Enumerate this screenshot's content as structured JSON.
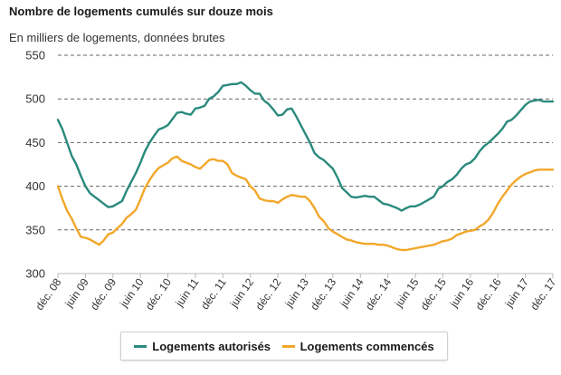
{
  "title": "Nombre de logements cumulés sur douze mois",
  "subtitle": "En milliers de logements, données brutes",
  "colors": {
    "autorises": "#2a8a7c",
    "commences": "#f2a72a",
    "grid": "#666666",
    "axis": "#bbbbbb"
  },
  "legend": {
    "autorises": "Logements autorisés",
    "commences": "Logements commencés"
  },
  "chart_data": {
    "type": "line",
    "title": "Nombre de logements cumulés sur douze mois",
    "subtitle": "En milliers de logements, données brutes",
    "ylim": [
      300,
      550
    ],
    "yticks": [
      300,
      350,
      400,
      450,
      500,
      550
    ],
    "xlim": [
      0,
      108
    ],
    "xtick_positions": [
      0,
      6,
      12,
      18,
      24,
      30,
      36,
      42,
      48,
      54,
      60,
      66,
      72,
      78,
      84,
      90,
      96,
      102,
      108
    ],
    "xtick_labels": [
      "déc. 08",
      "juin 09",
      "déc. 09",
      "juin 10",
      "déc. 10",
      "juin 11",
      "déc. 11",
      "juin 12",
      "déc. 12",
      "juin 13",
      "déc. 13",
      "juin 14",
      "déc. 14",
      "juin 15",
      "déc. 15",
      "juin 16",
      "déc. 16",
      "juin 17",
      "déc. 17"
    ],
    "grid": true,
    "legend_position": "bottom",
    "series": [
      {
        "name": "Logements autorisés",
        "color": "#2a8a7c",
        "values": [
          476,
          465,
          450,
          435,
          425,
          412,
          400,
          392,
          388,
          384,
          380,
          376,
          377,
          380,
          383,
          395,
          405,
          415,
          427,
          440,
          450,
          458,
          465,
          467,
          470,
          477,
          484,
          485,
          483,
          482,
          489,
          490,
          492,
          500,
          503,
          508,
          515,
          516,
          517,
          517,
          519,
          515,
          510,
          506,
          506,
          498,
          494,
          488,
          481,
          482,
          488,
          489,
          480,
          470,
          460,
          450,
          438,
          433,
          430,
          425,
          420,
          410,
          398,
          393,
          388,
          387,
          388,
          389,
          388,
          388,
          384,
          380,
          379,
          377,
          375,
          372,
          375,
          377,
          377,
          379,
          382,
          385,
          388,
          397,
          400,
          405,
          408,
          413,
          420,
          425,
          427,
          432,
          440,
          446,
          450,
          455,
          460,
          466,
          474,
          476,
          481,
          487,
          493,
          497,
          498,
          499,
          497,
          497,
          497
        ]
      },
      {
        "name": "Logements commencés",
        "color": "#f2a72a",
        "values": [
          400,
          385,
          372,
          363,
          352,
          342,
          341,
          339,
          336,
          333,
          338,
          345,
          347,
          352,
          357,
          364,
          368,
          373,
          385,
          398,
          407,
          415,
          421,
          424,
          427,
          432,
          434,
          429,
          427,
          425,
          422,
          420,
          425,
          430,
          431,
          429,
          429,
          425,
          415,
          412,
          410,
          408,
          400,
          395,
          386,
          384,
          383,
          383,
          381,
          385,
          388,
          390,
          389,
          388,
          388,
          383,
          375,
          365,
          360,
          352,
          348,
          345,
          342,
          339,
          338,
          336,
          335,
          334,
          334,
          334,
          333,
          333,
          332,
          330,
          328,
          327,
          327,
          328,
          329,
          330,
          331,
          332,
          333,
          335,
          337,
          338,
          340,
          344,
          346,
          348,
          349,
          350,
          354,
          357,
          362,
          370,
          380,
          388,
          395,
          402,
          407,
          411,
          414,
          416,
          418,
          419,
          419,
          419,
          419
        ]
      }
    ]
  }
}
